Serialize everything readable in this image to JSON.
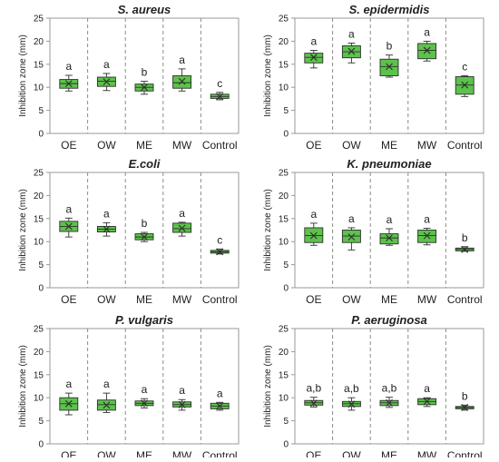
{
  "chart_data": [
    {
      "type": "box",
      "title": "S. aureus",
      "ylabel": "Inhibition zone (mm)",
      "ylim": [
        0,
        25
      ],
      "yticks": [
        0,
        5,
        10,
        15,
        20,
        25
      ],
      "categories": [
        "OE",
        "OW",
        "ME",
        "MW",
        "Control"
      ],
      "boxes": [
        {
          "min": 9.2,
          "q1": 9.8,
          "median": 10.8,
          "q3": 11.7,
          "max": 12.6,
          "mean": 10.8,
          "letter": "a"
        },
        {
          "min": 9.3,
          "q1": 10.2,
          "median": 11.3,
          "q3": 12.2,
          "max": 13.0,
          "mean": 11.2,
          "letter": "a"
        },
        {
          "min": 8.5,
          "q1": 9.2,
          "median": 10.0,
          "q3": 10.7,
          "max": 11.3,
          "mean": 10.0,
          "letter": "b"
        },
        {
          "min": 9.2,
          "q1": 9.8,
          "median": 11.0,
          "q3": 12.5,
          "max": 14.0,
          "mean": 11.3,
          "letter": "a"
        },
        {
          "min": 7.3,
          "q1": 7.6,
          "median": 8.0,
          "q3": 8.5,
          "max": 8.9,
          "mean": 8.0,
          "letter": "c"
        }
      ],
      "grid": false,
      "legend": "none"
    },
    {
      "type": "box",
      "title": "S. epidermidis",
      "ylabel": "Inhibition zone (mm)",
      "ylim": [
        0,
        25
      ],
      "yticks": [
        0,
        5,
        10,
        15,
        20,
        25
      ],
      "categories": [
        "OE",
        "OW",
        "ME",
        "MW",
        "Control"
      ],
      "boxes": [
        {
          "min": 14.2,
          "q1": 15.3,
          "median": 16.5,
          "q3": 17.4,
          "max": 18.0,
          "mean": 16.5,
          "letter": "a"
        },
        {
          "min": 15.3,
          "q1": 16.4,
          "median": 17.7,
          "q3": 19.0,
          "max": 19.6,
          "mean": 17.8,
          "letter": "a"
        },
        {
          "min": 12.2,
          "q1": 12.5,
          "median": 14.5,
          "q3": 16.1,
          "max": 17.0,
          "mean": 14.5,
          "letter": "b"
        },
        {
          "min": 15.7,
          "q1": 16.2,
          "median": 18.0,
          "q3": 19.5,
          "max": 20.0,
          "mean": 18.0,
          "letter": "a"
        },
        {
          "min": 8.0,
          "q1": 8.5,
          "median": 10.5,
          "q3": 12.3,
          "max": 12.5,
          "mean": 10.5,
          "letter": "c"
        }
      ],
      "grid": false,
      "legend": "none"
    },
    {
      "type": "box",
      "title": "E.coli",
      "ylabel": "Inhibition zone (mm)",
      "ylim": [
        0,
        25
      ],
      "yticks": [
        0,
        5,
        10,
        15,
        20,
        25
      ],
      "categories": [
        "OE",
        "OW",
        "ME",
        "MW",
        "Control"
      ],
      "boxes": [
        {
          "min": 11.0,
          "q1": 12.2,
          "median": 13.3,
          "q3": 14.4,
          "max": 15.1,
          "mean": 13.3,
          "letter": "a"
        },
        {
          "min": 11.2,
          "q1": 12.1,
          "median": 12.7,
          "q3": 13.3,
          "max": 14.1,
          "mean": 12.7,
          "letter": "a"
        },
        {
          "min": 10.0,
          "q1": 10.4,
          "median": 11.0,
          "q3": 11.7,
          "max": 12.0,
          "mean": 11.0,
          "letter": "b"
        },
        {
          "min": 11.2,
          "q1": 12.0,
          "median": 12.8,
          "q3": 14.0,
          "max": 14.2,
          "mean": 12.9,
          "letter": "a"
        },
        {
          "min": 7.3,
          "q1": 7.5,
          "median": 7.8,
          "q3": 8.1,
          "max": 8.4,
          "mean": 7.8,
          "letter": "c"
        }
      ],
      "grid": false,
      "legend": "none"
    },
    {
      "type": "box",
      "title": "K. pneumoniae",
      "ylabel": "Inhibition zone (mm)",
      "ylim": [
        0,
        25
      ],
      "yticks": [
        0,
        5,
        10,
        15,
        20,
        25
      ],
      "categories": [
        "OE",
        "OW",
        "ME",
        "MW",
        "Control"
      ],
      "boxes": [
        {
          "min": 9.2,
          "q1": 9.8,
          "median": 11.3,
          "q3": 13.0,
          "max": 14.0,
          "mean": 11.3,
          "letter": "a"
        },
        {
          "min": 8.2,
          "q1": 9.8,
          "median": 11.2,
          "q3": 12.5,
          "max": 13.0,
          "mean": 11.0,
          "letter": "a"
        },
        {
          "min": 9.2,
          "q1": 9.5,
          "median": 10.8,
          "q3": 11.7,
          "max": 12.8,
          "mean": 10.8,
          "letter": "a"
        },
        {
          "min": 9.3,
          "q1": 9.8,
          "median": 11.3,
          "q3": 12.5,
          "max": 12.9,
          "mean": 11.3,
          "letter": "a"
        },
        {
          "min": 7.9,
          "q1": 8.0,
          "median": 8.3,
          "q3": 8.6,
          "max": 8.9,
          "mean": 8.3,
          "letter": "b"
        }
      ],
      "grid": false,
      "legend": "none"
    },
    {
      "type": "box",
      "title": "P. vulgaris",
      "ylabel": "Inhibition zone (mm)",
      "ylim": [
        0,
        25
      ],
      "yticks": [
        0,
        5,
        10,
        15,
        20,
        25
      ],
      "categories": [
        "OE",
        "OW",
        "ME",
        "MW",
        "Control"
      ],
      "boxes": [
        {
          "min": 6.3,
          "q1": 7.3,
          "median": 8.7,
          "q3": 10.0,
          "max": 11.0,
          "mean": 8.7,
          "letter": "a"
        },
        {
          "min": 6.8,
          "q1": 7.3,
          "median": 8.5,
          "q3": 9.5,
          "max": 11.0,
          "mean": 8.4,
          "letter": "a"
        },
        {
          "min": 7.8,
          "q1": 8.3,
          "median": 8.8,
          "q3": 9.3,
          "max": 9.8,
          "mean": 8.8,
          "letter": "a"
        },
        {
          "min": 7.3,
          "q1": 8.0,
          "median": 8.5,
          "q3": 9.1,
          "max": 9.6,
          "mean": 8.5,
          "letter": "a"
        },
        {
          "min": 7.3,
          "q1": 7.6,
          "median": 8.2,
          "q3": 8.8,
          "max": 9.0,
          "mean": 8.2,
          "letter": "a"
        }
      ],
      "grid": false,
      "legend": "none"
    },
    {
      "type": "box",
      "title": "P. aeruginosa",
      "ylabel": "Inhibition zone (mm)",
      "ylim": [
        0,
        25
      ],
      "yticks": [
        0,
        5,
        10,
        15,
        20,
        25
      ],
      "categories": [
        "OE",
        "OW",
        "ME",
        "MW",
        "Control"
      ],
      "boxes": [
        {
          "min": 8.0,
          "q1": 8.4,
          "median": 8.9,
          "q3": 9.4,
          "max": 10.1,
          "mean": 8.8,
          "letter": "a,b"
        },
        {
          "min": 7.3,
          "q1": 8.1,
          "median": 8.7,
          "q3": 9.2,
          "max": 10.0,
          "mean": 8.6,
          "letter": "a,b"
        },
        {
          "min": 7.9,
          "q1": 8.3,
          "median": 8.9,
          "q3": 9.4,
          "max": 10.1,
          "mean": 8.9,
          "letter": "a,b"
        },
        {
          "min": 8.1,
          "q1": 8.5,
          "median": 9.2,
          "q3": 9.8,
          "max": 10.0,
          "mean": 9.2,
          "letter": "a"
        },
        {
          "min": 7.3,
          "q1": 7.6,
          "median": 7.9,
          "q3": 8.1,
          "max": 8.4,
          "mean": 7.9,
          "letter": "b"
        }
      ],
      "grid": false,
      "legend": "none"
    }
  ],
  "colors": {
    "box_fill": "#5cc34a",
    "box_stroke": "#2e2e2e",
    "frame": "#9a9a9a",
    "separator": "#8c8c8c",
    "text": "#222222"
  }
}
